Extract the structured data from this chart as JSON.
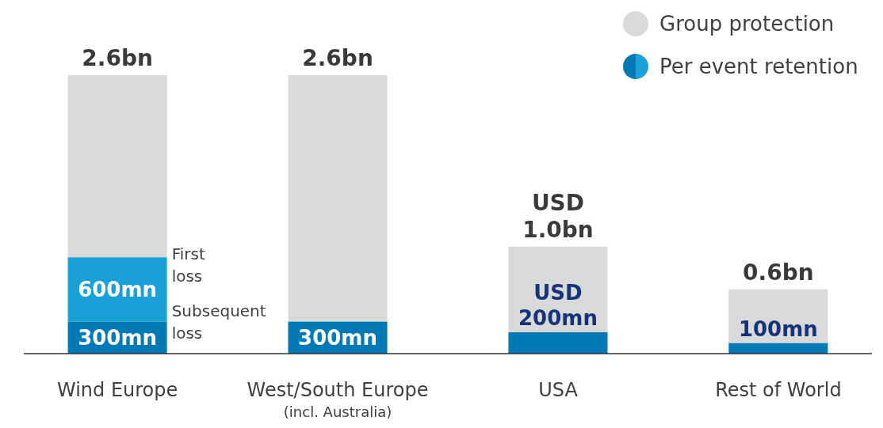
{
  "chart_data": {
    "type": "bar",
    "stacked": true,
    "categories": [
      "Wind Europe",
      "West/South Europe\n(incl. Australia)",
      "USA",
      "Rest of World"
    ],
    "series": [
      {
        "name": "Per event retention",
        "color": "#0079b5",
        "values": [
          300,
          300,
          200,
          100
        ],
        "value_labels": [
          "300mn",
          "300mn",
          "USD 200mn",
          "100mn"
        ]
      },
      {
        "color": "#17a1d7",
        "values": [
          600,
          null,
          null,
          null
        ],
        "value_labels": [
          "600mn",
          null,
          null,
          null
        ]
      },
      {
        "name": "Group protection",
        "color": "#d9d9d9",
        "values": [
          1700,
          2300,
          800,
          500
        ]
      }
    ],
    "ylim": [
      0,
      2600
    ],
    "totals": [
      "2.6bn",
      "2.6bn",
      "USD 1.0bn",
      "0.6bn"
    ],
    "annotations": [
      "First loss",
      "Subsequent loss"
    ],
    "legend": "top right"
  }
}
